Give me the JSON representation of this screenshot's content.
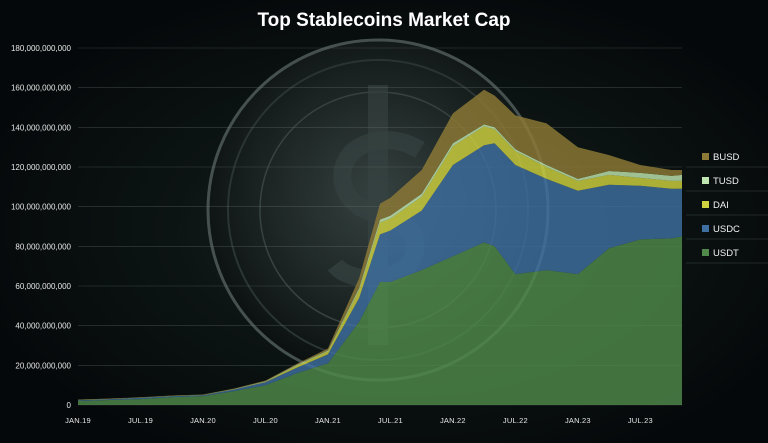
{
  "chart_data": {
    "type": "area",
    "stacked": true,
    "title": "Top Stablecoins Market Cap",
    "xlabel": "",
    "ylabel": "",
    "ylim": [
      0,
      180000000000
    ],
    "grid": true,
    "legend_position": "right",
    "y_ticks": [
      "0",
      "20,000,000,000",
      "40,000,000,000",
      "60,000,000,000",
      "80,000,000,000",
      "100,000,000,000",
      "120,000,000,000",
      "140,000,000,000",
      "160,000,000,000",
      "180,000,000,000"
    ],
    "x_ticks": [
      "JAN.19",
      "JUL.19",
      "JAN.20",
      "JUL.20",
      "JAN.21",
      "JUL.21",
      "JAN.22",
      "JUL.22",
      "JAN.23",
      "JUL.23"
    ],
    "x": [
      "JAN.19",
      "APR.19",
      "JUL.19",
      "OCT.19",
      "JAN.20",
      "APR.20",
      "JUL.20",
      "OCT.20",
      "JAN.21",
      "APR.21",
      "JUN.21",
      "JUL.21",
      "OCT.21",
      "JAN.22",
      "APR.22",
      "MAY.22",
      "JUL.22",
      "OCT.22",
      "JAN.23",
      "APR.23",
      "JUL.23",
      "OCT.23",
      "NOV.23"
    ],
    "series": [
      {
        "name": "USDT",
        "color": "#4f8a4a",
        "values": [
          2.0,
          2.5,
          3.0,
          4.0,
          4.5,
          7.0,
          10.0,
          16.0,
          21.0,
          42.0,
          62.0,
          62.0,
          68.0,
          75.0,
          82.0,
          80.0,
          66.0,
          68.0,
          66.0,
          79.0,
          83.5,
          84.0,
          85.0
        ]
      },
      {
        "name": "USDC",
        "color": "#3e6fa0",
        "values": [
          0.4,
          0.5,
          0.6,
          0.5,
          0.5,
          0.8,
          1.5,
          2.8,
          4.5,
          12.0,
          24.0,
          26.0,
          30.0,
          46.0,
          49.0,
          52.0,
          55.0,
          46.0,
          42.0,
          32.0,
          27.0,
          25.0,
          24.0
        ]
      },
      {
        "name": "DAI",
        "color": "#cfd23e",
        "values": [
          0.1,
          0.1,
          0.1,
          0.1,
          0.1,
          0.1,
          0.2,
          1.0,
          1.5,
          4.0,
          6.0,
          6.0,
          7.0,
          9.5,
          9.5,
          7.0,
          7.0,
          6.0,
          5.0,
          5.0,
          4.0,
          4.0,
          4.0
        ]
      },
      {
        "name": "TUSD",
        "color": "#bfe6b0",
        "values": [
          0.1,
          0.1,
          0.1,
          0.1,
          0.1,
          0.2,
          0.3,
          0.4,
          0.5,
          1.0,
          1.5,
          1.5,
          1.5,
          1.5,
          1.0,
          1.0,
          1.0,
          1.0,
          1.0,
          2.0,
          2.5,
          2.5,
          3.0
        ]
      },
      {
        "name": "BUSD",
        "color": "#8d7a36",
        "values": [
          0.1,
          0.1,
          0.1,
          0.1,
          0.1,
          0.2,
          0.3,
          0.5,
          1.0,
          5.0,
          8.0,
          9.0,
          12.0,
          15.0,
          17.5,
          16.0,
          17.0,
          21.0,
          16.0,
          8.0,
          4.0,
          3.0,
          2.5
        ]
      }
    ]
  }
}
